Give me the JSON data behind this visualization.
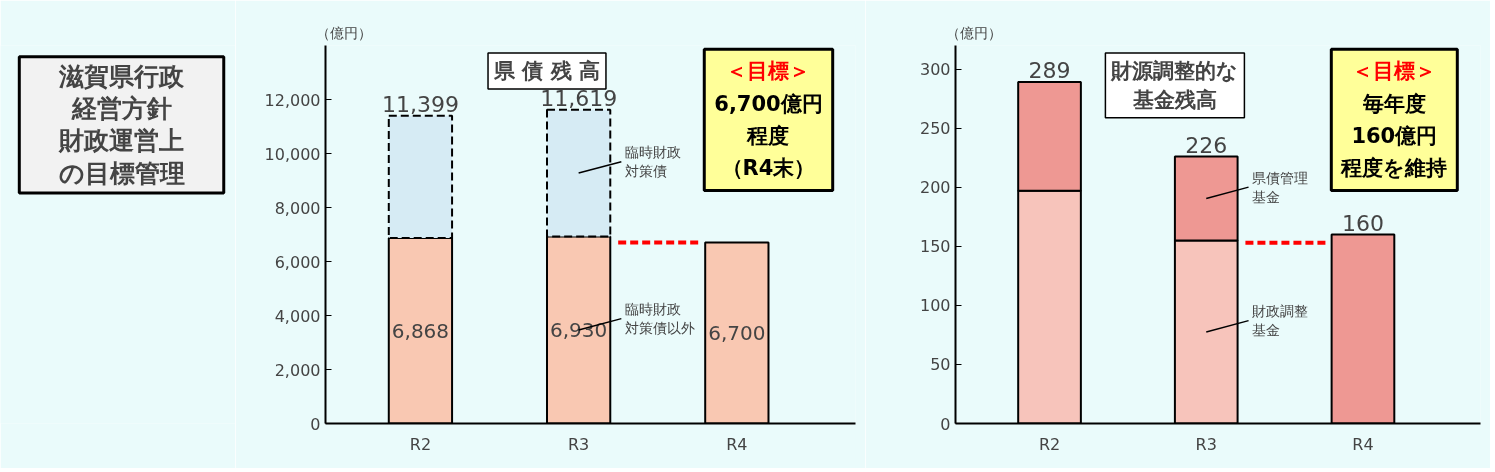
{
  "chart_data": [
    {
      "type": "other",
      "annotations": [
        "滋賀県行政",
        "経営方針",
        "財政運営上",
        "の目標管理"
      ]
    },
    {
      "type": "bar",
      "title": "県 債 残 高",
      "ylabel": "（億円）",
      "stacked": true,
      "categories": [
        "R2",
        "R3",
        "R4"
      ],
      "series": [
        {
          "name": "臨時財政対策債以外",
          "color": "#f9c8b2",
          "values": [
            6868,
            6930,
            6700
          ],
          "value_labels": [
            "6,868",
            "6,930",
            "6,700"
          ]
        },
        {
          "name": "臨時財政対策債",
          "color": "#d6ebf4",
          "line_style": "dashed",
          "values": [
            4531,
            4689,
            null
          ]
        }
      ],
      "totals": [
        "11,399",
        "11,619",
        null
      ],
      "ylim": [
        0,
        14000
      ],
      "yticks": [
        0,
        {
          "value": 2000,
          "label": "2,000"
        },
        {
          "value": 4000,
          "label": "4,000"
        },
        {
          "value": 6000,
          "label": "6,000"
        },
        {
          "value": 8000,
          "label": "8,000"
        },
        {
          "value": 10000,
          "label": "10,000"
        },
        {
          "value": 12000,
          "label": "12,000"
        }
      ],
      "ref_lines": [
        {
          "axis": "y",
          "value": 6700,
          "color": "#ff0000",
          "line_style": "dashed"
        }
      ],
      "annotations": [
        "＜目標＞",
        "6,700億円",
        "程度",
        "（R4末）"
      ],
      "grid": false,
      "legend": "right"
    },
    {
      "type": "bar",
      "title": "財源調整的な基金残高",
      "ylabel": "（億円）",
      "stacked": true,
      "categories": [
        "R2",
        "R3",
        "R4"
      ],
      "series": [
        {
          "name": "財政調整基金",
          "color": "#f7c4bb",
          "values": [
            197,
            155,
            null
          ]
        },
        {
          "name": "県債管理基金",
          "color": "#ee9893",
          "values": [
            92,
            71,
            null
          ]
        },
        {
          "color": "#ee9893",
          "values": [
            null,
            null,
            160
          ]
        }
      ],
      "totals": [
        "289",
        "226",
        "160"
      ],
      "ylim": [
        0,
        320
      ],
      "yticks": [
        0,
        50,
        100,
        150,
        200,
        250,
        300
      ],
      "ref_lines": [
        {
          "axis": "y",
          "value": 153,
          "color": "#ff0000",
          "line_style": "dashed"
        }
      ],
      "annotations": [
        "＜目標＞",
        "毎年度",
        "160億円",
        "程度を維持"
      ],
      "grid": false,
      "legend": "right"
    }
  ]
}
